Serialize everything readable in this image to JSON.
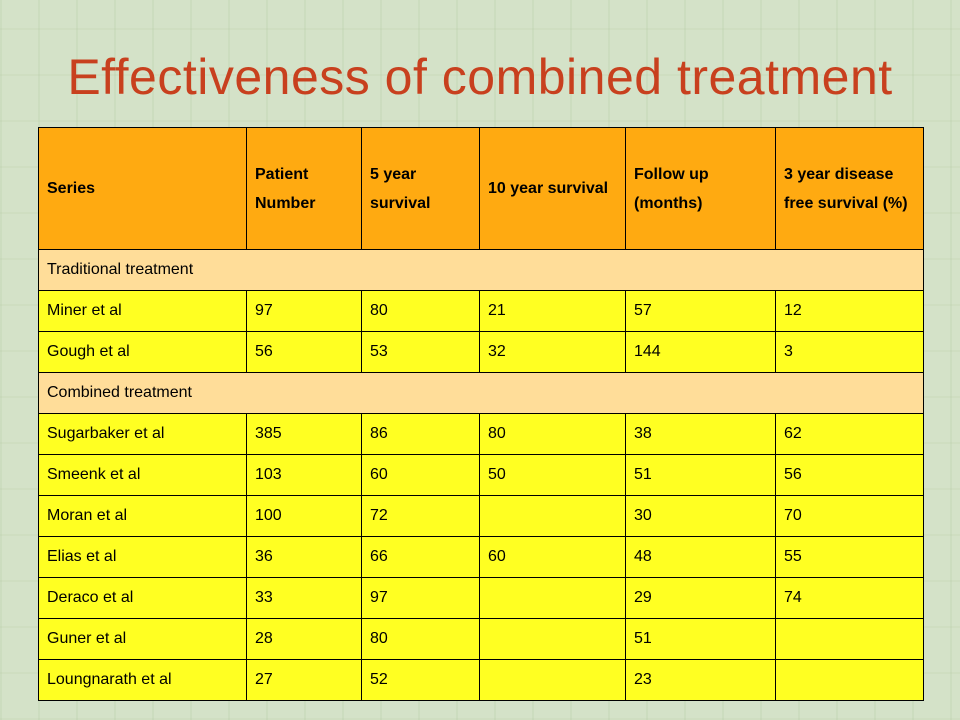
{
  "slide": {
    "title": "Effectiveness of combined treatment"
  },
  "table": {
    "headers": [
      "Series",
      "Patient Number",
      "5 year survival",
      "10 year survival",
      "Follow up (months)",
      "3 year disease free survival (%)"
    ],
    "sections": [
      {
        "label": "Traditional treatment",
        "rows": [
          [
            "Miner et al",
            "97",
            "80",
            "21",
            "57",
            "12"
          ],
          [
            "Gough et al",
            "56",
            "53",
            "32",
            "144",
            "3"
          ]
        ]
      },
      {
        "label": "Combined treatment",
        "rows": [
          [
            "Sugarbaker et al",
            "385",
            "86",
            "80",
            "38",
            "62"
          ],
          [
            "Smeenk et al",
            "103",
            "60",
            "50",
            "51",
            "56"
          ],
          [
            "Moran et al",
            "100",
            "72",
            "",
            "30",
            "70"
          ],
          [
            "Elias et al",
            "36",
            "66",
            "60",
            "48",
            "55"
          ],
          [
            "Deraco et al",
            "33",
            "97",
            "",
            "29",
            "74"
          ],
          [
            "Guner et al",
            "28",
            "80",
            "",
            "51",
            ""
          ],
          [
            "Loungnarath et al",
            "27",
            "52",
            "",
            "23",
            ""
          ]
        ]
      }
    ]
  }
}
